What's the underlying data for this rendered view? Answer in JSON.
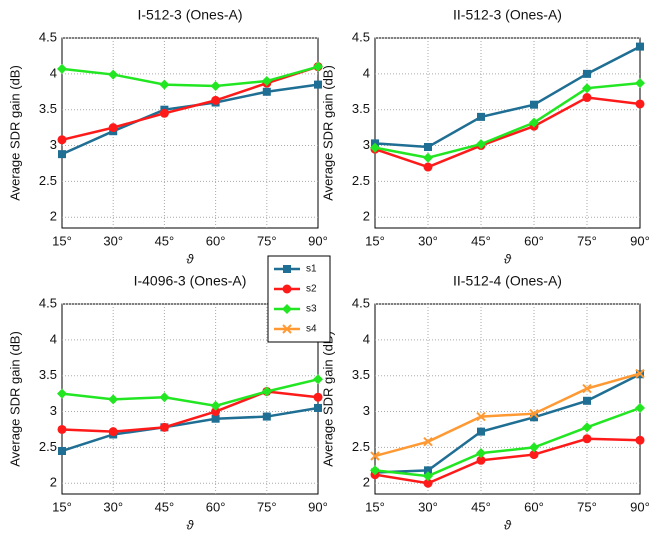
{
  "chart_data": [
    {
      "type": "line",
      "title": "I-512-3 (Ones-A)",
      "ylabel": "Average SDR gain (dB)",
      "xlabel": "ϑ",
      "categories": [
        "15°",
        "30°",
        "45°",
        "60°",
        "75°",
        "90°"
      ],
      "ylim": [
        1.85,
        4.5
      ],
      "yticks": [
        2,
        2.5,
        3,
        3.5,
        4,
        4.5
      ],
      "grid": true,
      "series": [
        {
          "name": "s1",
          "color": "#1f6e94",
          "marker": "square",
          "values": [
            2.88,
            3.2,
            3.5,
            3.6,
            3.75,
            3.85
          ]
        },
        {
          "name": "s2",
          "color": "#ff1a1a",
          "marker": "circle",
          "values": [
            3.08,
            3.25,
            3.45,
            3.63,
            3.87,
            4.1
          ]
        },
        {
          "name": "s3",
          "color": "#22e622",
          "marker": "diamond",
          "values": [
            4.07,
            3.99,
            3.85,
            3.83,
            3.9,
            4.1
          ]
        }
      ]
    },
    {
      "type": "line",
      "title": "II-512-3 (Ones-A)",
      "ylabel": "Average SDR gain (dB)",
      "xlabel": "ϑ",
      "categories": [
        "15°",
        "30°",
        "45°",
        "60°",
        "75°",
        "90°"
      ],
      "ylim": [
        1.85,
        4.5
      ],
      "yticks": [
        2,
        2.5,
        3,
        3.5,
        4,
        4.5
      ],
      "grid": true,
      "series": [
        {
          "name": "s1",
          "color": "#1f6e94",
          "marker": "square",
          "values": [
            3.03,
            2.98,
            3.4,
            3.57,
            4.0,
            4.38
          ]
        },
        {
          "name": "s2",
          "color": "#ff1a1a",
          "marker": "circle",
          "values": [
            2.95,
            2.7,
            3.0,
            3.27,
            3.67,
            3.58
          ]
        },
        {
          "name": "s3",
          "color": "#22e622",
          "marker": "diamond",
          "values": [
            2.97,
            2.83,
            3.02,
            3.32,
            3.8,
            3.87
          ]
        }
      ]
    },
    {
      "type": "line",
      "title": "I-4096-3 (Ones-A)",
      "ylabel": "Average SDR gain (dB)",
      "xlabel": "ϑ",
      "categories": [
        "15°",
        "30°",
        "45°",
        "60°",
        "75°",
        "90°"
      ],
      "ylim": [
        1.85,
        4.5
      ],
      "yticks": [
        2,
        2.5,
        3,
        3.5,
        4,
        4.5
      ],
      "grid": true,
      "series": [
        {
          "name": "s1",
          "color": "#1f6e94",
          "marker": "square",
          "values": [
            2.45,
            2.68,
            2.78,
            2.9,
            2.93,
            3.05
          ]
        },
        {
          "name": "s2",
          "color": "#ff1a1a",
          "marker": "circle",
          "values": [
            2.75,
            2.72,
            2.78,
            3.0,
            3.28,
            3.2
          ]
        },
        {
          "name": "s3",
          "color": "#22e622",
          "marker": "diamond",
          "values": [
            3.25,
            3.17,
            3.2,
            3.08,
            3.28,
            3.45
          ]
        }
      ]
    },
    {
      "type": "line",
      "title": "II-512-4 (Ones-A)",
      "ylabel": "Average SDR gain (dB)",
      "xlabel": "ϑ",
      "categories": [
        "15°",
        "30°",
        "45°",
        "60°",
        "75°",
        "90°"
      ],
      "ylim": [
        1.85,
        4.5
      ],
      "yticks": [
        2,
        2.5,
        3,
        3.5,
        4,
        4.5
      ],
      "grid": true,
      "series": [
        {
          "name": "s1",
          "color": "#1f6e94",
          "marker": "square",
          "values": [
            2.15,
            2.18,
            2.72,
            2.92,
            3.15,
            3.52
          ]
        },
        {
          "name": "s2",
          "color": "#ff1a1a",
          "marker": "circle",
          "values": [
            2.12,
            2.0,
            2.32,
            2.4,
            2.62,
            2.6
          ]
        },
        {
          "name": "s3",
          "color": "#22e622",
          "marker": "diamond",
          "values": [
            2.18,
            2.1,
            2.42,
            2.5,
            2.78,
            3.05
          ]
        },
        {
          "name": "s4",
          "color": "#ff9933",
          "marker": "x",
          "values": [
            2.38,
            2.58,
            2.93,
            2.97,
            3.32,
            3.53
          ]
        }
      ]
    }
  ]
}
